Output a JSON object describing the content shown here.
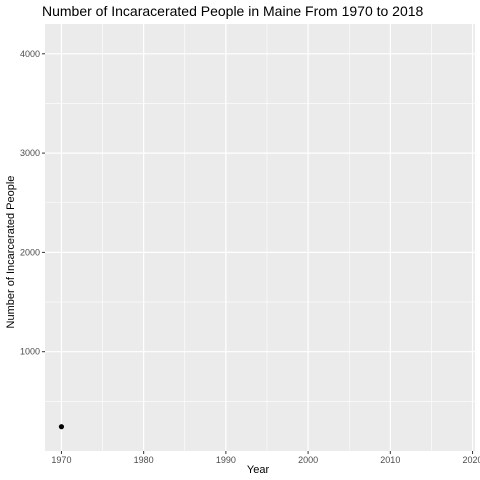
{
  "chart_data": {
    "type": "scatter",
    "title": "Number of Incaracerated People in Maine From 1970 to 2018",
    "xlabel": "Year",
    "ylabel": "Number of Incarcerated People",
    "x_ticks": [
      1970,
      1980,
      1990,
      2000,
      2010,
      2020
    ],
    "y_ticks": [
      1000,
      2000,
      3000,
      4000
    ],
    "xlim": [
      1968,
      2020.3
    ],
    "ylim": [
      0,
      4300
    ],
    "grid": true,
    "colors": {
      "panel_background": "#ebebeb",
      "grid_line": "#ffffff",
      "point": "#000000",
      "tick_text": "#4d4d4d",
      "title_text": "#000000"
    },
    "series": [
      {
        "x": [
          1970
        ],
        "y": [
          245
        ]
      }
    ]
  }
}
